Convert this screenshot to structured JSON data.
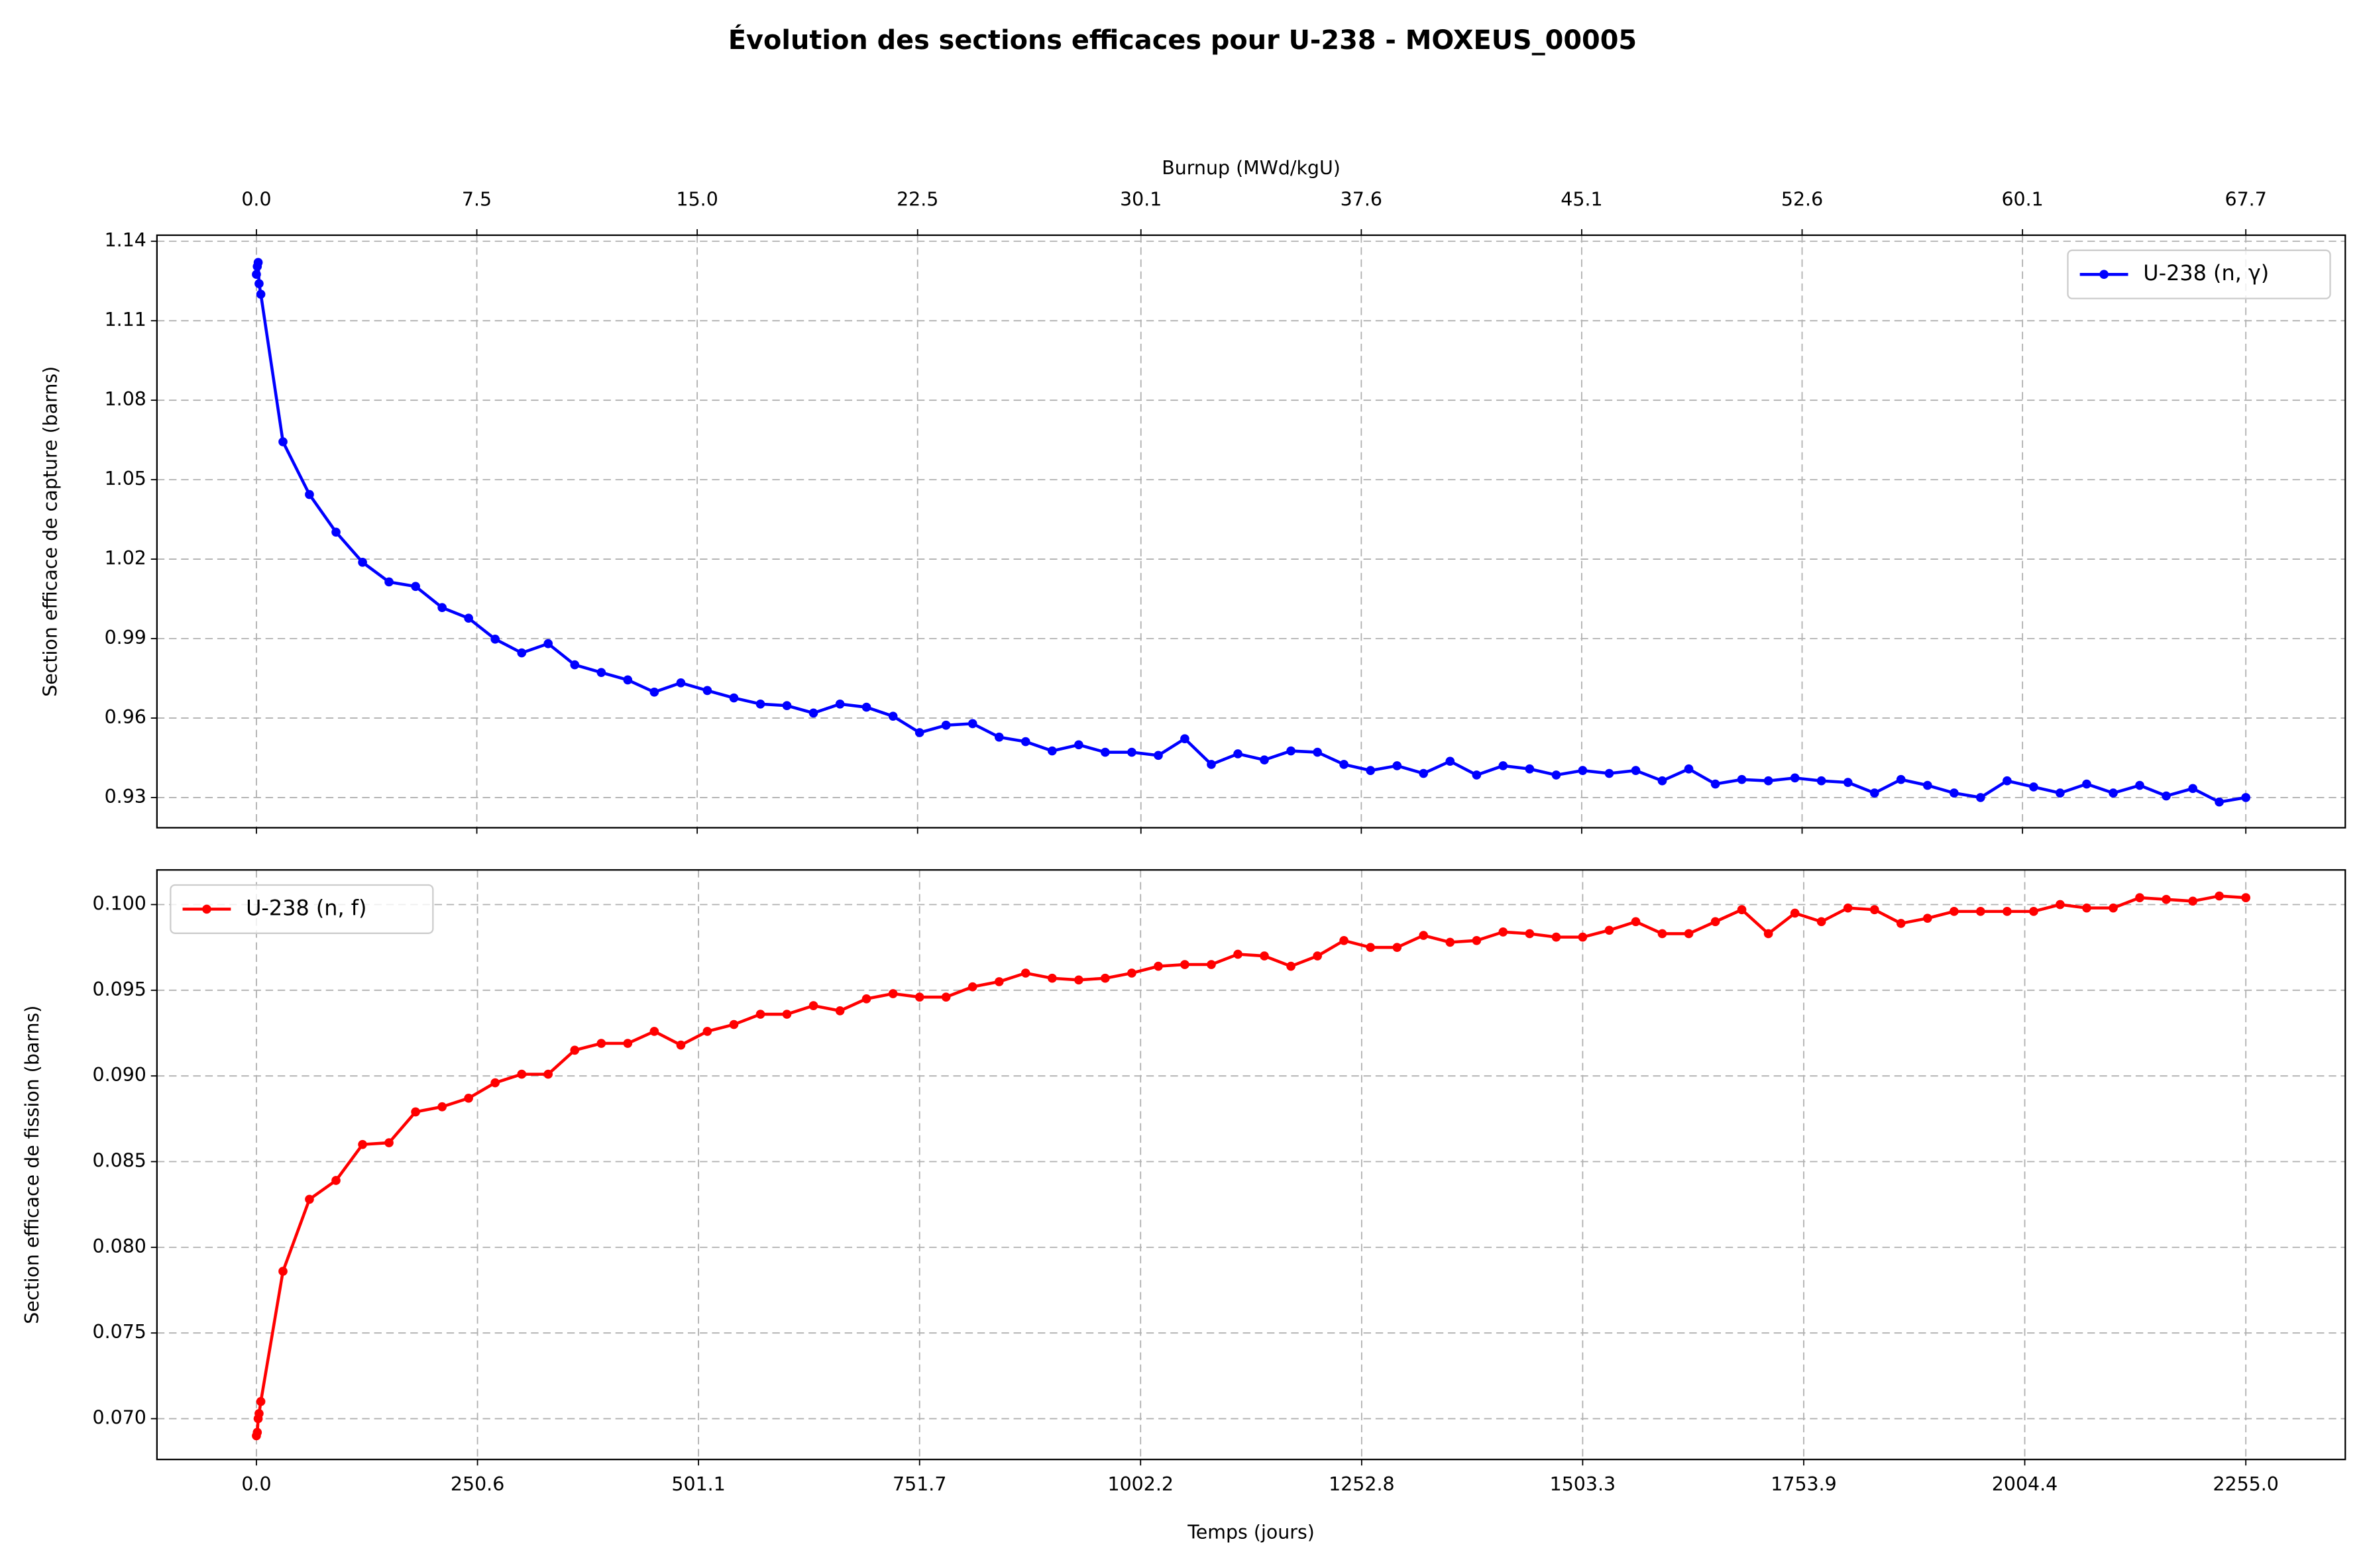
{
  "chart_data": [
    {
      "type": "line",
      "title": "Évolution des sections efficaces pour U-238 - MOXEUS_00005",
      "ylabel": "Section efficace de capture (barns)",
      "x2label": "Burnup (MWd/kgU)",
      "x": [
        0,
        1,
        2,
        3,
        5,
        30.1,
        60.1,
        90.2,
        120.3,
        150.3,
        180.4,
        210.5,
        240.5,
        270.6,
        300.7,
        330.7,
        360.8,
        390.9,
        420.9,
        451.0,
        481.1,
        511.1,
        541.2,
        571.3,
        601.3,
        631.4,
        661.5,
        691.5,
        721.6,
        751.7,
        781.7,
        811.8,
        841.9,
        871.9,
        902.0,
        932.1,
        962.1,
        992.2,
        1022.3,
        1052.3,
        1082.4,
        1112.5,
        1142.5,
        1172.6,
        1202.7,
        1232.7,
        1262.8,
        1292.9,
        1322.9,
        1353.0,
        1383.1,
        1413.1,
        1443.2,
        1473.3,
        1503.3,
        1533.4,
        1563.5,
        1593.5,
        1623.6,
        1653.7,
        1683.7,
        1713.8,
        1743.9,
        1773.9,
        1804.0,
        1834.1,
        1864.1,
        1894.2,
        1924.3,
        1954.3,
        1984.4,
        2014.5,
        2044.5,
        2074.6,
        2104.7,
        2134.7,
        2164.8,
        2194.9,
        2224.9,
        2255.0
      ],
      "series": [
        {
          "name": "U-238 (n, γ)",
          "color": "#0000ff",
          "values": [
            1.1275,
            1.1305,
            1.132,
            1.124,
            1.12,
            1.0643,
            1.0444,
            1.0302,
            1.0188,
            1.0114,
            1.0097,
            1.0017,
            0.9977,
            0.9898,
            0.9846,
            0.9881,
            0.9801,
            0.9772,
            0.9744,
            0.9698,
            0.9733,
            0.9704,
            0.9676,
            0.9653,
            0.9647,
            0.9619,
            0.9653,
            0.9641,
            0.9607,
            0.9545,
            0.9573,
            0.9579,
            0.9528,
            0.9511,
            0.9476,
            0.9499,
            0.9471,
            0.9471,
            0.9459,
            0.9522,
            0.9425,
            0.9465,
            0.9442,
            0.9476,
            0.9471,
            0.9425,
            0.9402,
            0.942,
            0.9391,
            0.9437,
            0.9385,
            0.942,
            0.9408,
            0.9385,
            0.9402,
            0.9391,
            0.9402,
            0.9363,
            0.9408,
            0.9351,
            0.9368,
            0.9363,
            0.9374,
            0.9363,
            0.9357,
            0.9317,
            0.9368,
            0.9346,
            0.9317,
            0.93,
            0.9363,
            0.934,
            0.9317,
            0.9351,
            0.9317,
            0.9346,
            0.9306,
            0.9334,
            0.9283,
            0.93
          ]
        }
      ],
      "xlim": [
        -112.75,
        2367.75
      ],
      "x2lim": [
        -3.385,
        71.085
      ],
      "x2ticks": [
        {
          "value": 0,
          "label": "0.0"
        },
        7.5,
        {
          "value": 15,
          "label": "15.0"
        },
        22.5,
        30.1,
        37.6,
        45.1,
        52.6,
        60.1,
        67.7
      ],
      "ylim": [
        0.9186,
        1.1423
      ],
      "yticks": [
        0.93,
        0.96,
        0.99,
        1.02,
        1.05,
        1.08,
        1.11,
        1.14
      ],
      "grid": true,
      "legend": "upper right"
    },
    {
      "type": "line",
      "ylabel": "Section efficace de fission (barns)",
      "xlabel": "Temps (jours)",
      "x": [
        0,
        1,
        2,
        3,
        5,
        30.1,
        60.1,
        90.2,
        120.3,
        150.3,
        180.4,
        210.5,
        240.5,
        270.6,
        300.7,
        330.7,
        360.8,
        390.9,
        420.9,
        451.0,
        481.1,
        511.1,
        541.2,
        571.3,
        601.3,
        631.4,
        661.5,
        691.5,
        721.6,
        751.7,
        781.7,
        811.8,
        841.9,
        871.9,
        902.0,
        932.1,
        962.1,
        992.2,
        1022.3,
        1052.3,
        1082.4,
        1112.5,
        1142.5,
        1172.6,
        1202.7,
        1232.7,
        1262.8,
        1292.9,
        1322.9,
        1353.0,
        1383.1,
        1413.1,
        1443.2,
        1473.3,
        1503.3,
        1533.4,
        1563.5,
        1593.5,
        1623.6,
        1653.7,
        1683.7,
        1713.8,
        1743.9,
        1773.9,
        1804.0,
        1834.1,
        1864.1,
        1894.2,
        1924.3,
        1954.3,
        1984.4,
        2014.5,
        2044.5,
        2074.6,
        2104.7,
        2134.7,
        2164.8,
        2194.9,
        2224.9,
        2255.0
      ],
      "series": [
        {
          "name": "U-238 (n, f)",
          "color": "#ff0000",
          "values": [
            0.069,
            0.0692,
            0.07,
            0.0703,
            0.071,
            0.0786,
            0.0828,
            0.0839,
            0.086,
            0.0861,
            0.0879,
            0.0882,
            0.0887,
            0.0896,
            0.0901,
            0.0901,
            0.0915,
            0.0919,
            0.0919,
            0.0926,
            0.0918,
            0.0926,
            0.093,
            0.0936,
            0.0936,
            0.0941,
            0.0938,
            0.0945,
            0.0948,
            0.0946,
            0.0946,
            0.0952,
            0.0955,
            0.096,
            0.0957,
            0.0956,
            0.0957,
            0.096,
            0.0964,
            0.0965,
            0.0965,
            0.0971,
            0.097,
            0.0964,
            0.097,
            0.0979,
            0.0975,
            0.0975,
            0.0982,
            0.0978,
            0.0979,
            0.0984,
            0.0983,
            0.0981,
            0.0981,
            0.0985,
            0.099,
            0.0983,
            0.0983,
            0.099,
            0.0997,
            0.0983,
            0.0995,
            0.099,
            0.0998,
            0.0997,
            0.0989,
            0.0992,
            0.0996,
            0.0996,
            0.0996,
            0.0996,
            0.1,
            0.0998,
            0.0998,
            0.1004,
            0.1003,
            0.1002,
            0.1005,
            0.1004
          ]
        }
      ],
      "xlim": [
        -112.75,
        2367.75
      ],
      "xticks": [
        {
          "value": 0,
          "label": "0.0"
        },
        250.6,
        501.1,
        751.7,
        1002.2,
        1252.8,
        1503.3,
        1753.9,
        2004.4,
        {
          "value": 2255,
          "label": "2255.0"
        }
      ],
      "ylim": [
        0.06762,
        0.10202
      ],
      "yticks": [
        {
          "value": 0.07,
          "label": "0.070"
        },
        0.075,
        {
          "value": 0.08,
          "label": "0.080"
        },
        0.085,
        {
          "value": 0.09,
          "label": "0.090"
        },
        0.095,
        {
          "value": 0.1,
          "label": "0.100"
        }
      ],
      "grid": true,
      "legend": "upper left"
    }
  ]
}
